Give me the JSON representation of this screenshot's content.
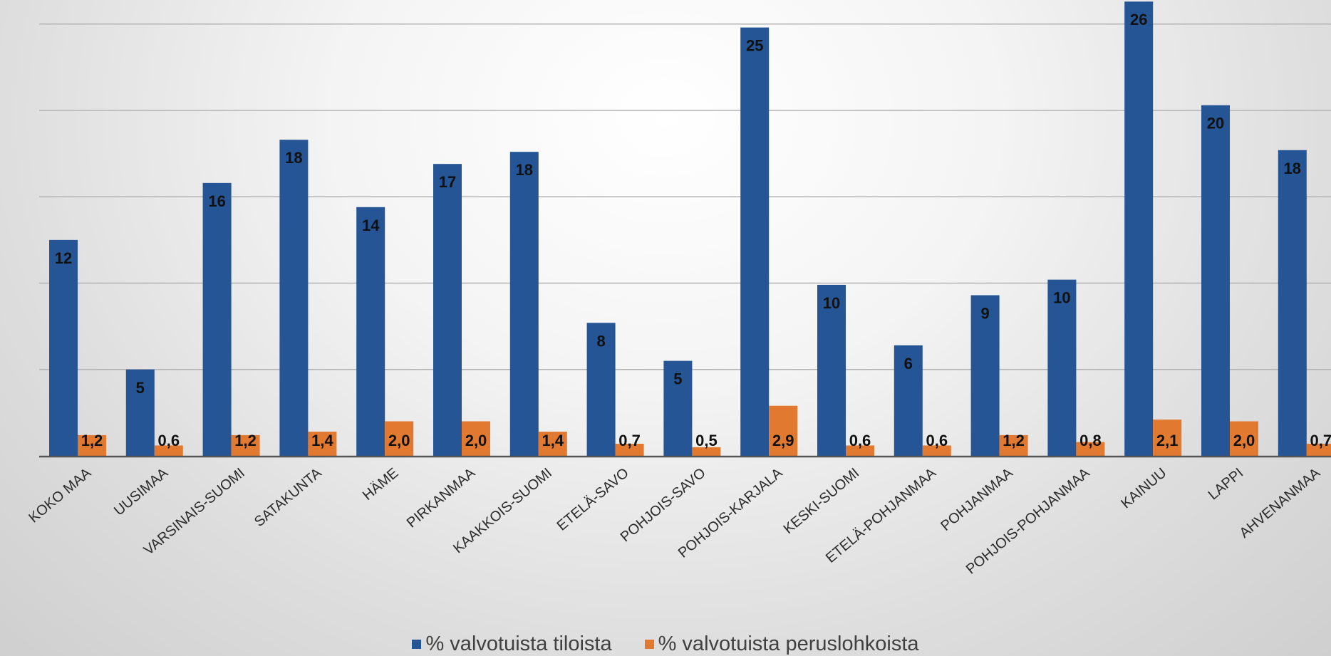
{
  "colors": {
    "series_1": "#255595",
    "series_2": "#e17a30",
    "gridline": "#b3b3b3",
    "axis": "#555555",
    "label_text": "#111111",
    "category_text": "#2b2b2b"
  },
  "chart_data": {
    "type": "bar",
    "title": "",
    "xlabel": "",
    "ylabel": "",
    "ylim": [
      0,
      26.5
    ],
    "grid": true,
    "legend_placement": "bottom",
    "categories": [
      "KOKO MAA",
      "UUSIMAA",
      "VARSINAIS-SUOMI",
      "SATAKUNTA",
      "HÄME",
      "PIRKANMAA",
      "KAAKKOIS-SUOMI",
      "ETELÄ-SAVO",
      "POHJOIS-SAVO",
      "POHJOIS-KARJALA",
      "KESKI-SUOMI",
      "ETELÄ-POHJANMAA",
      "POHJANMAA",
      "POHJOIS-POHJANMAA",
      "KAINUU",
      "LAPPI",
      "AHVENANMAA"
    ],
    "series": [
      {
        "name": "% valvotuista tiloista",
        "values": [
          12.5,
          5.0,
          15.8,
          18.3,
          14.4,
          16.9,
          17.6,
          7.7,
          5.5,
          24.8,
          9.9,
          6.4,
          9.3,
          10.2,
          26.3,
          20.3,
          17.7
        ],
        "labels": [
          "12",
          "5",
          "16",
          "18",
          "14",
          "17",
          "18",
          "8",
          "5",
          "25",
          "10",
          "6",
          "9",
          "10",
          "26",
          "20",
          "18"
        ]
      },
      {
        "name": "% valvotuista peruslohkoista",
        "values": [
          1.2,
          0.6,
          1.2,
          1.4,
          2.0,
          2.0,
          1.4,
          0.7,
          0.5,
          2.9,
          0.6,
          0.6,
          1.2,
          0.8,
          2.1,
          2.0,
          0.7
        ],
        "labels": [
          "1,2",
          "0,6",
          "1,2",
          "1,4",
          "2,0",
          "2,0",
          "1,4",
          "0,7",
          "0,5",
          "2,9",
          "0,6",
          "0,6",
          "1,2",
          "0,8",
          "2,1",
          "2,0",
          "0,7"
        ]
      }
    ]
  }
}
